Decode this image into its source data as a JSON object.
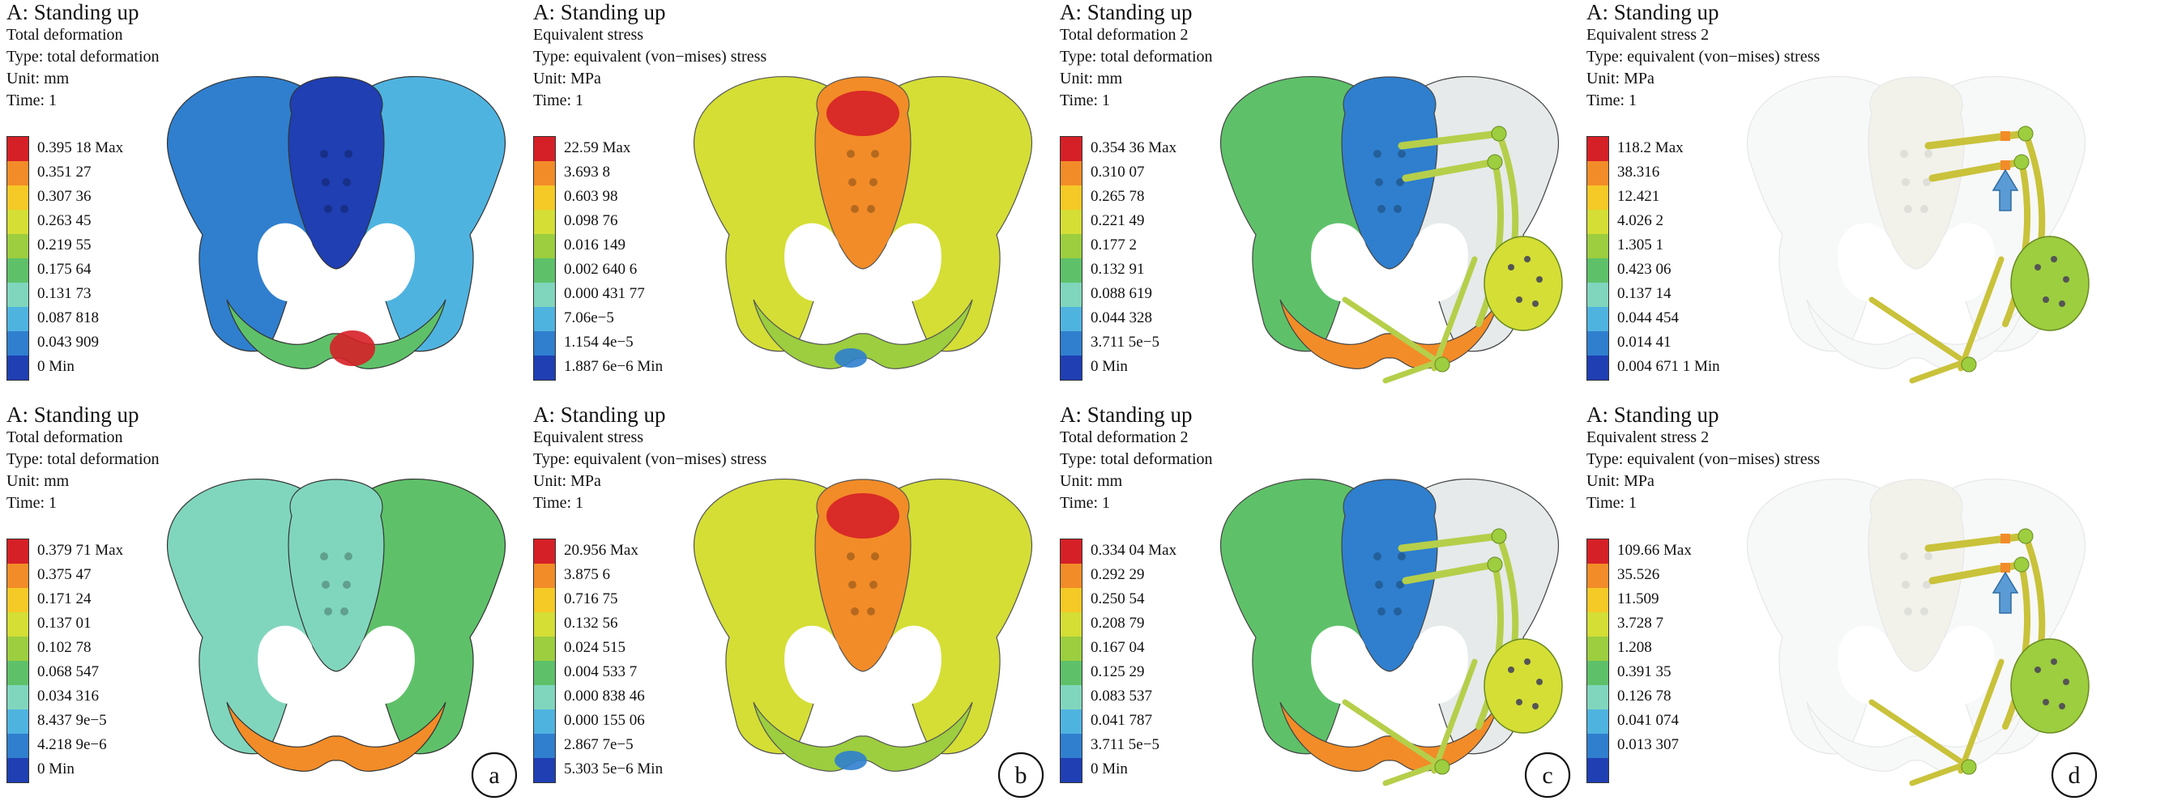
{
  "colors": {
    "legend": [
      "#d62027",
      "#f28c28",
      "#f5c926",
      "#d4de35",
      "#9cce3f",
      "#5ec169",
      "#80d6bd",
      "#4fb3e0",
      "#2f7fce",
      "#1f3fb3"
    ]
  },
  "panels": [
    {
      "letter": "",
      "model": "pelvis-deformation",
      "header": [
        "A: Standing up",
        "Total deformation",
        "Type: total deformation",
        "Unit: mm",
        "Time: 1"
      ],
      "legend": [
        "0.395 18 Max",
        "0.351 27",
        "0.307 36",
        "0.263 45",
        "0.219 55",
        "0.175 64",
        "0.131 73",
        "0.087 818",
        "0.043 909",
        "0 Min"
      ]
    },
    {
      "letter": "",
      "model": "pelvis-stress",
      "header": [
        "A: Standing up",
        "Equivalent stress",
        "Type: equivalent (von−mises) stress",
        "Unit: MPa",
        "Time: 1"
      ],
      "legend": [
        "22.59 Max",
        "3.693 8",
        "0.603 98",
        "0.098 76",
        "0.016 149",
        "0.002 640 6",
        "0.000 431 77",
        "7.06e−5",
        "1.154 4e−5",
        "1.887 6e−6 Min"
      ]
    },
    {
      "letter": "",
      "model": "implant-deformation",
      "header": [
        "A: Standing up",
        "Total deformation 2",
        "Type: total deformation",
        "Unit: mm",
        "Time: 1"
      ],
      "legend": [
        "0.354 36 Max",
        "0.310 07",
        "0.265 78",
        "0.221 49",
        "0.177 2",
        "0.132 91",
        "0.088 619",
        "0.044 328",
        "3.711 5e−5",
        "0 Min"
      ]
    },
    {
      "letter": "",
      "model": "implant-stress",
      "header": [
        "A: Standing up",
        "Equivalent stress 2",
        "Type: equivalent (von−mises) stress",
        "Unit: MPa",
        "Time: 1"
      ],
      "legend": [
        "118.2 Max",
        "38.316",
        "12.421",
        "4.026 2",
        "1.305 1",
        "0.423 06",
        "0.137 14",
        "0.044 454",
        "0.014 41",
        "0.004 671 1 Min"
      ]
    },
    {
      "letter": "a",
      "model": "pelvis-deformation-2",
      "header": [
        "A: Standing up",
        "Total deformation",
        "Type: total deformation",
        "Unit: mm",
        "Time: 1"
      ],
      "legend": [
        "0.379 71 Max",
        "0.375 47",
        "0.171 24",
        "0.137 01",
        "0.102 78",
        "0.068 547",
        "0.034 316",
        "8.437 9e−5",
        "4.218 9e−6",
        "0 Min"
      ]
    },
    {
      "letter": "b",
      "model": "pelvis-stress",
      "header": [
        "A: Standing up",
        "Equivalent stress",
        "Type: equivalent (von−mises) stress",
        "Unit: MPa",
        "Time: 1"
      ],
      "legend": [
        "20.956 Max",
        "3.875 6",
        "0.716 75",
        "0.132 56",
        "0.024 515",
        "0.004 533 7",
        "0.000 838 46",
        "0.000 155 06",
        "2.867 7e−5",
        "5.303 5e−6 Min"
      ]
    },
    {
      "letter": "c",
      "model": "implant-deformation",
      "header": [
        "A: Standing up",
        "Total deformation 2",
        "Type: total deformation",
        "Unit: mm",
        "Time: 1"
      ],
      "legend": [
        "0.334 04 Max",
        "0.292 29",
        "0.250 54",
        "0.208 79",
        "0.167 04",
        "0.125 29",
        "0.083 537",
        "0.041 787",
        "3.711 5e−5",
        "0 Min"
      ]
    },
    {
      "letter": "d",
      "model": "implant-stress",
      "header": [
        "A: Standing up",
        "Equivalent stress 2",
        "Type: equivalent (von−mises) stress",
        "Unit: MPa",
        "Time: 1"
      ],
      "legend": [
        "109.66 Max",
        "35.526",
        "11.509",
        "3.728 7",
        "1.208",
        "0.391 35",
        "0.126 78",
        "0.041 074",
        "0.013 307",
        ""
      ]
    }
  ]
}
